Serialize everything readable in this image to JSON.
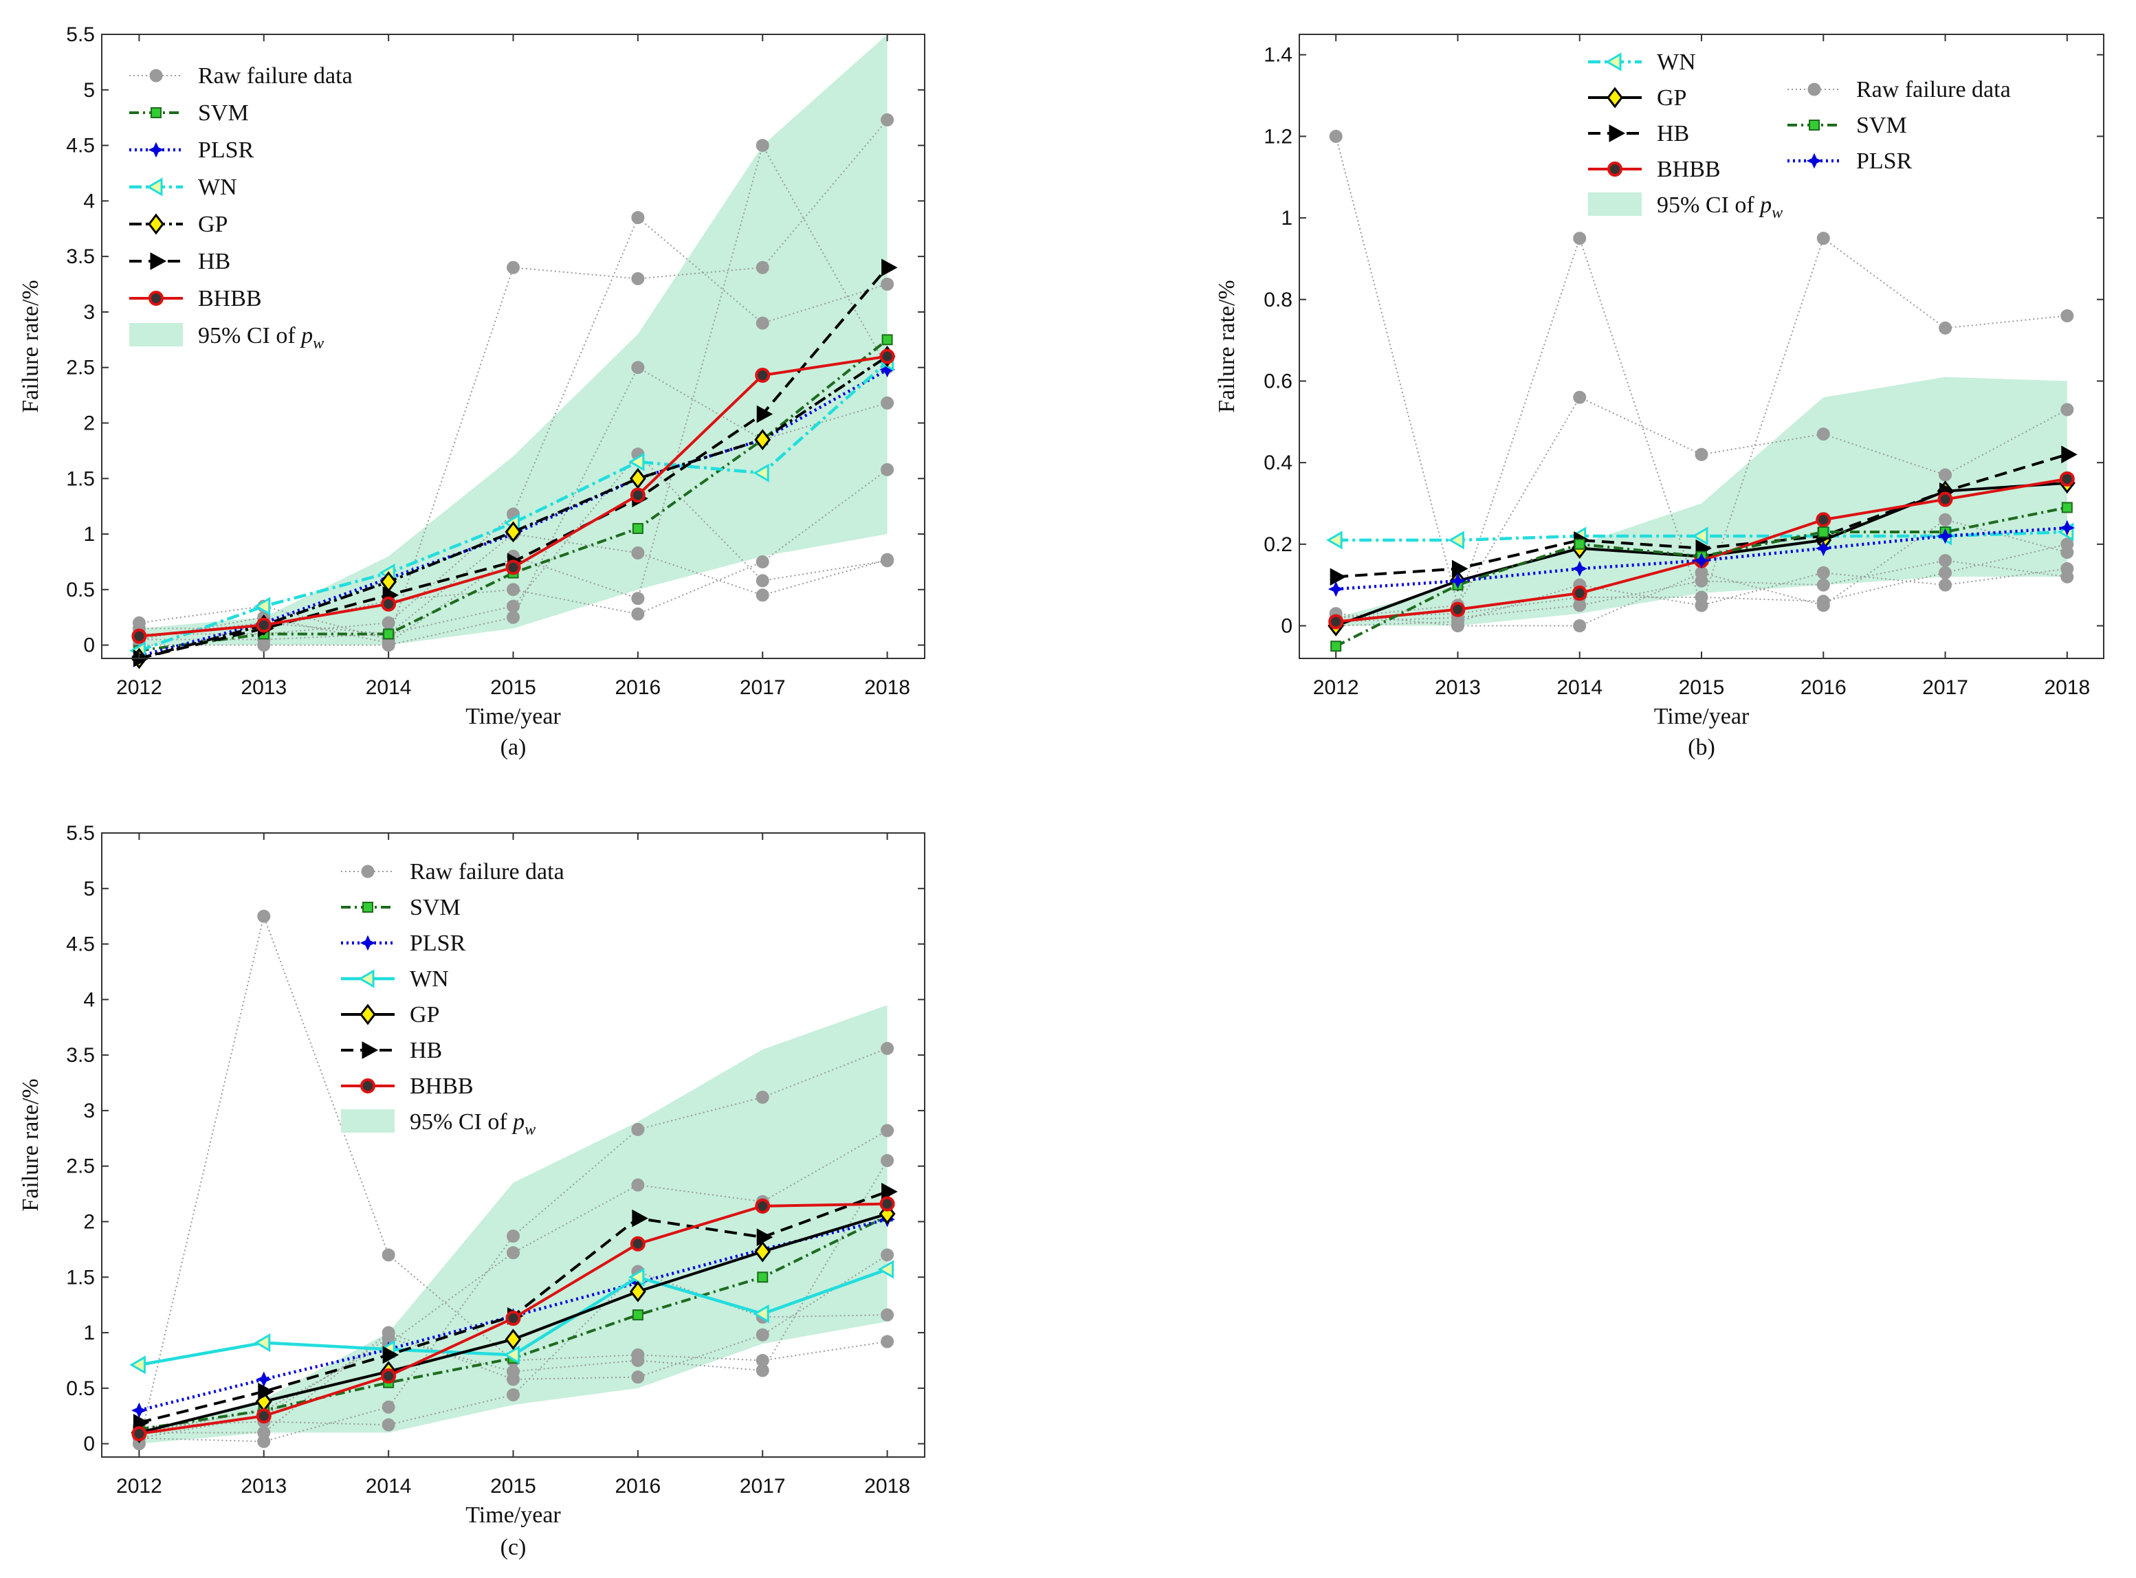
{
  "figure": {
    "colors": {
      "raw": "#9a9a9a",
      "svm": "#1e6b1e",
      "svm_marker": "#33cc33",
      "plsr": "#0000dd",
      "wn": "#22dddd",
      "gp": "#000000",
      "gp_marker": "#ffee00",
      "hb": "#000000",
      "bhbb": "#dd1111",
      "ci_fill": "#c7efdc"
    }
  },
  "chart_data": [
    {
      "type": "line",
      "panel": "(a)",
      "caption": "(a)",
      "xlabel": "Time/year",
      "ylabel": "Failure rate/%",
      "x": [
        2012,
        2013,
        2014,
        2015,
        2016,
        2017,
        2018
      ],
      "x_ticks": [
        "2012",
        "2013",
        "2014",
        "2015",
        "2016",
        "2017",
        "2018"
      ],
      "ylim": [
        -0.12,
        5.5
      ],
      "y_ticks": [
        0,
        0.5,
        1,
        1.5,
        2,
        2.5,
        3,
        3.5,
        4,
        4.5,
        5,
        5.5
      ],
      "y_tick_labels": [
        "0",
        "0.5",
        "1",
        "1.5",
        "2",
        "2.5",
        "3",
        "3.5",
        "4",
        "4.5",
        "5",
        "5.5"
      ],
      "legend_position": "top-left",
      "legend": [
        "Raw failure data",
        "SVM",
        "PLSR",
        "WN",
        "GP",
        "HB",
        "BHBB",
        "95% CI of p_w"
      ],
      "ci": {
        "name": "95% CI of p_w",
        "upper": [
          0.15,
          0.25,
          0.8,
          1.7,
          2.8,
          4.5,
          5.5
        ],
        "lower": [
          0.0,
          0.0,
          0.0,
          0.15,
          0.5,
          0.8,
          1.0
        ]
      },
      "raw_series": [
        [
          0.2,
          0.35,
          0.05,
          3.4,
          3.3,
          3.4,
          4.73
        ],
        [
          0.1,
          0.1,
          0.2,
          1.18,
          3.85,
          2.9,
          3.25
        ],
        [
          0.0,
          0.0,
          0.0,
          0.25,
          2.5,
          1.85,
          2.18
        ],
        [
          0.05,
          0.05,
          0.1,
          0.35,
          1.72,
          0.58,
          0.76
        ],
        [
          0.15,
          0.15,
          0.4,
          0.5,
          0.28,
          0.75,
          1.58
        ],
        [
          0.08,
          0.2,
          0.1,
          1.0,
          0.83,
          0.45,
          0.77
        ],
        [
          0.05,
          0.25,
          0.02,
          0.8,
          0.42,
          4.5,
          2.5
        ]
      ],
      "series": [
        {
          "name": "SVM",
          "key": "svm",
          "values": [
            -0.05,
            0.1,
            0.1,
            0.65,
            1.05,
            1.85,
            2.75
          ]
        },
        {
          "name": "PLSR",
          "key": "plsr",
          "values": [
            -0.1,
            0.2,
            0.6,
            1.0,
            1.5,
            1.85,
            2.48
          ]
        },
        {
          "name": "WN",
          "key": "wn",
          "values": [
            -0.05,
            0.35,
            0.65,
            1.1,
            1.65,
            1.55,
            2.55
          ]
        },
        {
          "name": "GP",
          "key": "gp",
          "values": [
            -0.12,
            0.18,
            0.57,
            1.02,
            1.5,
            1.85,
            2.6
          ]
        },
        {
          "name": "HB",
          "key": "hb",
          "values": [
            -0.12,
            0.15,
            0.45,
            0.75,
            1.32,
            2.08,
            3.4
          ]
        },
        {
          "name": "BHBB",
          "key": "bhbb",
          "values": [
            0.08,
            0.18,
            0.37,
            0.7,
            1.35,
            2.43,
            2.6
          ]
        }
      ]
    },
    {
      "type": "line",
      "panel": "(b)",
      "caption": "(b)",
      "xlabel": "Time/year",
      "ylabel": "Failure rate/%",
      "x": [
        2012,
        2013,
        2014,
        2015,
        2016,
        2017,
        2018
      ],
      "x_ticks": [
        "2012",
        "2013",
        "2014",
        "2015",
        "2016",
        "2017",
        "2018"
      ],
      "ylim": [
        -0.08,
        1.45
      ],
      "y_ticks": [
        0,
        0.2,
        0.4,
        0.6,
        0.8,
        1,
        1.2,
        1.4
      ],
      "y_tick_labels": [
        "0",
        "0.2",
        "0.4",
        "0.6",
        "0.8",
        "1",
        "1.2",
        "1.4"
      ],
      "legend_position": "top",
      "legend": [
        "WN",
        "GP",
        "HB",
        "BHBB",
        "95% CI of p_w",
        "Raw failure data",
        "SVM",
        "PLSR"
      ],
      "ci": {
        "name": "95% CI of p_w",
        "upper": [
          0.02,
          0.1,
          0.2,
          0.3,
          0.56,
          0.61,
          0.6
        ],
        "lower": [
          0.0,
          0.0,
          0.03,
          0.08,
          0.1,
          0.12,
          0.12
        ]
      },
      "raw_series": [
        [
          1.2,
          0.05,
          0.95,
          0.05,
          0.95,
          0.73,
          0.76
        ],
        [
          0.02,
          0.05,
          0.56,
          0.42,
          0.47,
          0.37,
          0.53
        ],
        [
          0.03,
          0.0,
          0.0,
          0.13,
          0.05,
          0.26,
          0.18
        ],
        [
          0.01,
          0.02,
          0.05,
          0.11,
          0.1,
          0.16,
          0.12
        ],
        [
          0.0,
          0.01,
          0.1,
          0.05,
          0.13,
          0.1,
          0.14
        ],
        [
          0.02,
          0.03,
          0.07,
          0.07,
          0.06,
          0.13,
          0.2
        ]
      ],
      "series": [
        {
          "name": "WN",
          "key": "wn",
          "values": [
            0.21,
            0.21,
            0.22,
            0.22,
            0.22,
            0.22,
            0.23
          ]
        },
        {
          "name": "GP",
          "key": "gp",
          "values": [
            0.0,
            0.11,
            0.19,
            0.17,
            0.21,
            0.33,
            0.35
          ]
        },
        {
          "name": "HB",
          "key": "hb",
          "values": [
            0.12,
            0.14,
            0.21,
            0.19,
            0.22,
            0.33,
            0.42
          ]
        },
        {
          "name": "BHBB",
          "key": "bhbb",
          "values": [
            0.01,
            0.04,
            0.08,
            0.16,
            0.26,
            0.31,
            0.36
          ]
        },
        {
          "name": "SVM",
          "key": "svm",
          "values": [
            -0.05,
            0.1,
            0.2,
            0.17,
            0.23,
            0.23,
            0.29
          ]
        },
        {
          "name": "PLSR",
          "key": "plsr",
          "values": [
            0.09,
            0.11,
            0.14,
            0.16,
            0.19,
            0.22,
            0.24
          ]
        }
      ]
    },
    {
      "type": "line",
      "panel": "(c)",
      "caption": "(c)",
      "xlabel": "Time/year",
      "ylabel": "Failure rate/%",
      "x": [
        2012,
        2013,
        2014,
        2015,
        2016,
        2017,
        2018
      ],
      "x_ticks": [
        "2012",
        "2013",
        "2014",
        "2015",
        "2016",
        "2017",
        "2018"
      ],
      "ylim": [
        -0.12,
        5.5
      ],
      "y_ticks": [
        0,
        0.5,
        1,
        1.5,
        2,
        2.5,
        3,
        3.5,
        4,
        4.5,
        5,
        5.5
      ],
      "y_tick_labels": [
        "0",
        "0.5",
        "1",
        "1.5",
        "2",
        "2.5",
        "3",
        "3.5",
        "4",
        "4.5",
        "5",
        "5.5"
      ],
      "legend_position": "top",
      "legend": [
        "Raw failure data",
        "SVM",
        "PLSR",
        "WN",
        "GP",
        "HB",
        "BHBB",
        "95% CI of p_w"
      ],
      "ci": {
        "name": "95% CI of p_w",
        "upper": [
          0.1,
          0.4,
          1.0,
          2.35,
          2.9,
          3.55,
          3.95
        ],
        "lower": [
          0.0,
          0.1,
          0.1,
          0.35,
          0.5,
          0.9,
          1.1
        ]
      },
      "raw_series": [
        [
          0.0,
          4.75,
          1.7,
          0.75,
          0.8,
          0.75,
          0.92
        ],
        [
          0.05,
          0.02,
          0.33,
          1.87,
          2.83,
          3.12,
          3.56
        ],
        [
          0.1,
          0.3,
          0.9,
          1.72,
          2.33,
          2.18,
          2.82
        ],
        [
          0.15,
          0.2,
          0.17,
          0.44,
          1.55,
          1.14,
          1.16
        ],
        [
          0.05,
          0.25,
          0.95,
          0.65,
          0.75,
          0.66,
          2.55
        ],
        [
          0.1,
          0.1,
          1.0,
          0.58,
          0.6,
          0.98,
          1.7
        ]
      ],
      "series": [
        {
          "name": "SVM",
          "key": "svm",
          "values": [
            0.13,
            0.3,
            0.55,
            0.77,
            1.16,
            1.5,
            2.05
          ]
        },
        {
          "name": "PLSR",
          "key": "plsr",
          "values": [
            0.3,
            0.58,
            0.85,
            1.15,
            1.45,
            1.75,
            2.02
          ]
        },
        {
          "name": "WN",
          "key": "wn",
          "values": [
            0.71,
            0.91,
            0.85,
            0.8,
            1.5,
            1.17,
            1.57
          ]
        },
        {
          "name": "GP",
          "key": "gp",
          "values": [
            0.1,
            0.38,
            0.65,
            0.94,
            1.37,
            1.73,
            2.07
          ]
        },
        {
          "name": "HB",
          "key": "hb",
          "values": [
            0.19,
            0.47,
            0.8,
            1.15,
            2.03,
            1.86,
            2.27
          ]
        },
        {
          "name": "BHBB",
          "key": "bhbb",
          "values": [
            0.09,
            0.25,
            0.61,
            1.13,
            1.8,
            2.14,
            2.16
          ]
        }
      ]
    }
  ]
}
